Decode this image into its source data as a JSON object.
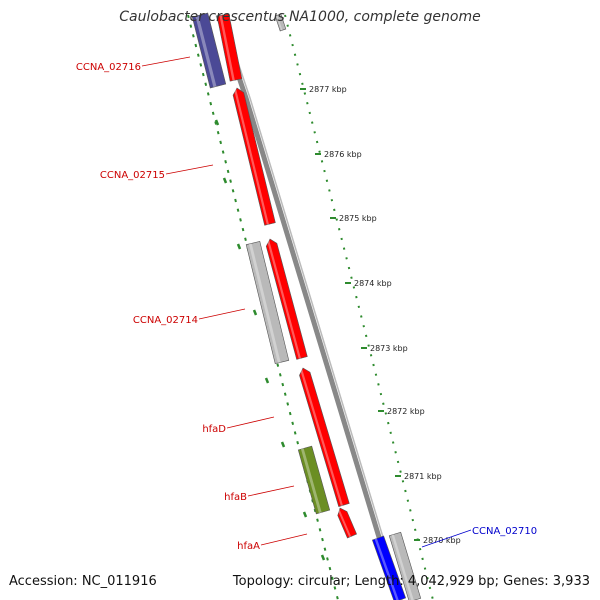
{
  "title": "Caulobacter crescentus NA1000, complete genome",
  "accession": "Accession: NC_011916",
  "topology": "Topology: circular; Length: 4,042,929 bp; Genes: 3,933",
  "colors": {
    "forward_cds": "#ff0000",
    "reverse_cds": "#b9b9b9",
    "selected": "#0000ff",
    "other_cds": "#4b4996",
    "fimbrial": "#6b8e23",
    "backbone": "#888888",
    "ruler": "#2e8b2e",
    "label_red": "#cc0000",
    "label_blue": "#0000cc"
  },
  "gene_labels": [
    {
      "id": "ccna-02716",
      "text": "CCNA_02716",
      "color": "red"
    },
    {
      "id": "ccna-02715",
      "text": "CCNA_02715",
      "color": "red"
    },
    {
      "id": "ccna-02714",
      "text": "CCNA_02714",
      "color": "red"
    },
    {
      "id": "hfad",
      "text": "hfaD",
      "color": "red"
    },
    {
      "id": "hfab",
      "text": "hfaB",
      "color": "red"
    },
    {
      "id": "hfaa",
      "text": "hfaA",
      "color": "red"
    },
    {
      "id": "ccna-02710",
      "text": "CCNA_02710",
      "color": "blue"
    }
  ],
  "ruler_labels": [
    "2877 kbp",
    "2876 kbp",
    "2875 kbp",
    "2874 kbp",
    "2873 kbp",
    "2872 kbp",
    "2871 kbp",
    "2870 kbp"
  ]
}
